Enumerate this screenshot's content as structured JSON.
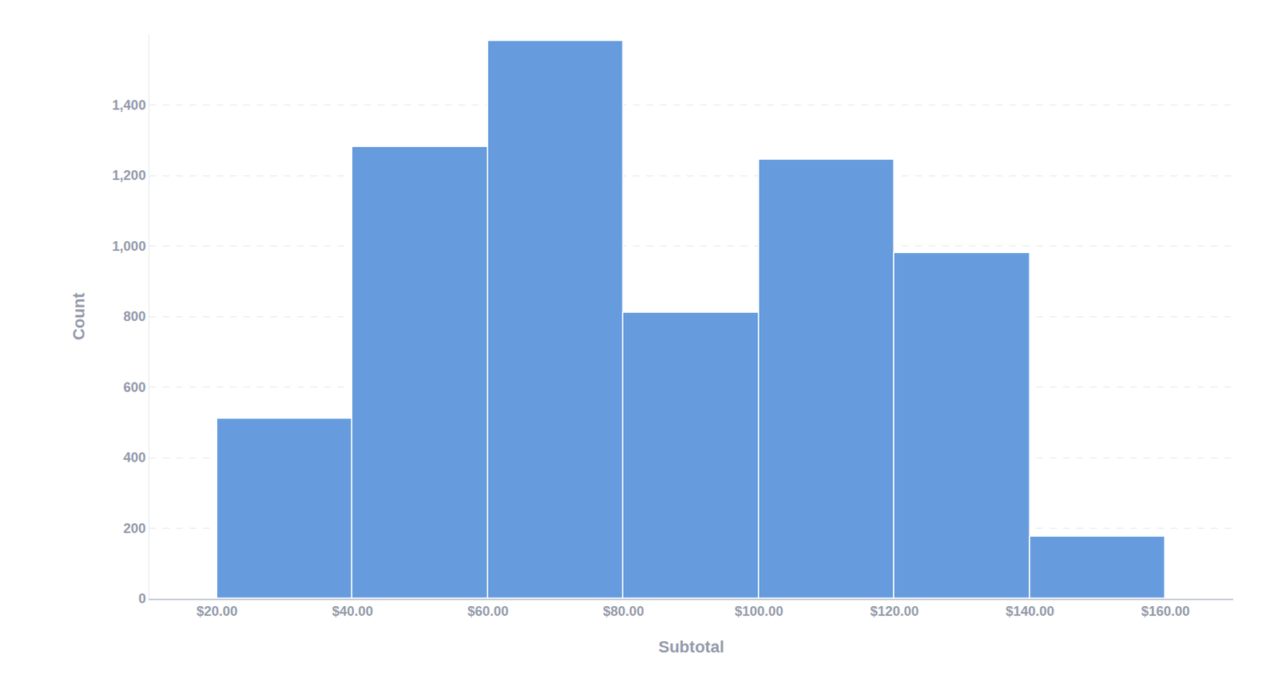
{
  "chart_data": {
    "type": "histogram",
    "x_label": "Subtotal",
    "y_label": "Count",
    "bins": [
      20,
      40,
      60,
      80,
      100,
      120,
      140,
      160
    ],
    "values": [
      510,
      1280,
      1580,
      810,
      1245,
      980,
      175
    ],
    "color": "#669cdd",
    "xlim": [
      10,
      170
    ],
    "xticks": [
      {
        "value": 20,
        "label": "$20.00"
      },
      {
        "value": 40,
        "label": "$40.00"
      },
      {
        "value": 60,
        "label": "$60.00"
      },
      {
        "value": 80,
        "label": "$80.00"
      },
      {
        "value": 100,
        "label": "$100.00"
      },
      {
        "value": 120,
        "label": "$120.00"
      },
      {
        "value": 140,
        "label": "$140.00"
      },
      {
        "value": 160,
        "label": "$160.00"
      }
    ],
    "ylim": [
      0,
      1600
    ],
    "yticks": [
      0,
      200,
      400,
      600,
      800,
      {
        "value": 1000,
        "label": "1,000"
      },
      {
        "value": 1200,
        "label": "1,200"
      },
      {
        "value": 1400,
        "label": "1,400"
      }
    ],
    "grid": true
  }
}
